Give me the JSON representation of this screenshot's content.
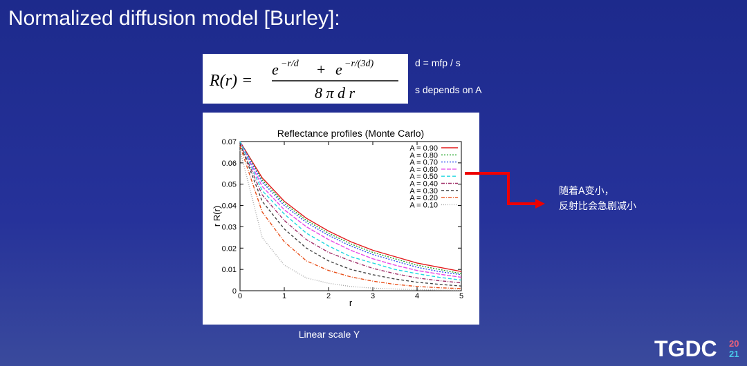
{
  "slide": {
    "title": "Normalized diffusion model [Burley]:",
    "formula": {
      "lhs": "R(r) =",
      "base1": "e",
      "exp1": "−r/d",
      "plus": "+",
      "base2": "e",
      "exp2": "−r/(3d)",
      "denominator": "8 π d r"
    },
    "notes": [
      "d = mfp / s",
      "s depends on A"
    ],
    "callout": [
      "随着A变小，",
      "反射比会急剧减小"
    ],
    "caption": "Linear scale Y",
    "logo": {
      "text": "TGDC",
      "top": "20",
      "bottom": "21"
    }
  },
  "chart_data": {
    "type": "line",
    "title": "Reflectance profiles (Monte Carlo)",
    "x_label": "r",
    "y_label": "r R(r)",
    "x": [
      0,
      0.5,
      1,
      1.5,
      2,
      2.5,
      3,
      3.5,
      4,
      4.5,
      5
    ],
    "series": [
      {
        "name": "A = 0.90",
        "color": "#e31a1c",
        "dash": "none",
        "values": [
          0.07,
          0.053,
          0.042,
          0.034,
          0.028,
          0.023,
          0.019,
          0.016,
          0.013,
          0.011,
          0.009
        ]
      },
      {
        "name": "A = 0.80",
        "color": "#22a52a",
        "dash": "2 2",
        "values": [
          0.07,
          0.052,
          0.041,
          0.033,
          0.027,
          0.022,
          0.018,
          0.015,
          0.012,
          0.01,
          0.008
        ]
      },
      {
        "name": "A = 0.70",
        "color": "#3050f0",
        "dash": "2 2",
        "values": [
          0.07,
          0.051,
          0.04,
          0.032,
          0.026,
          0.021,
          0.017,
          0.014,
          0.011,
          0.009,
          0.0075
        ]
      },
      {
        "name": "A = 0.60",
        "color": "#e848e8",
        "dash": "6 2",
        "values": [
          0.07,
          0.049,
          0.038,
          0.03,
          0.024,
          0.019,
          0.015,
          0.012,
          0.0095,
          0.0078,
          0.0063
        ]
      },
      {
        "name": "A = 0.50",
        "color": "#20d8e0",
        "dash": "5 3",
        "values": [
          0.07,
          0.047,
          0.036,
          0.027,
          0.021,
          0.016,
          0.013,
          0.01,
          0.008,
          0.0063,
          0.005
        ]
      },
      {
        "name": "A = 0.40",
        "color": "#a0306a",
        "dash": "5 2 1 2",
        "values": [
          0.069,
          0.045,
          0.033,
          0.024,
          0.018,
          0.014,
          0.0105,
          0.008,
          0.006,
          0.0047,
          0.0037
        ]
      },
      {
        "name": "A = 0.30",
        "color": "#444444",
        "dash": "4 3",
        "values": [
          0.069,
          0.042,
          0.029,
          0.02,
          0.014,
          0.01,
          0.0075,
          0.0055,
          0.004,
          0.003,
          0.0022
        ]
      },
      {
        "name": "A = 0.20",
        "color": "#e8501a",
        "dash": "5 2 1 2",
        "values": [
          0.068,
          0.037,
          0.023,
          0.014,
          0.0095,
          0.0065,
          0.0045,
          0.003,
          0.002,
          0.0014,
          0.001
        ]
      },
      {
        "name": "A = 0.10",
        "color": "#a8a8a8",
        "dash": "1 2",
        "values": [
          0.066,
          0.025,
          0.012,
          0.006,
          0.0035,
          0.002,
          0.0012,
          0.0008,
          0.0005,
          0.0003,
          0.0002
        ]
      }
    ],
    "xlim": [
      0,
      5
    ],
    "ylim": [
      0,
      0.07
    ],
    "xticks": [
      0,
      1,
      2,
      3,
      4,
      5
    ],
    "yticks": [
      0,
      0.01,
      0.02,
      0.03,
      0.04,
      0.05,
      0.06,
      0.07
    ],
    "grid": false,
    "legend": "upper right"
  }
}
